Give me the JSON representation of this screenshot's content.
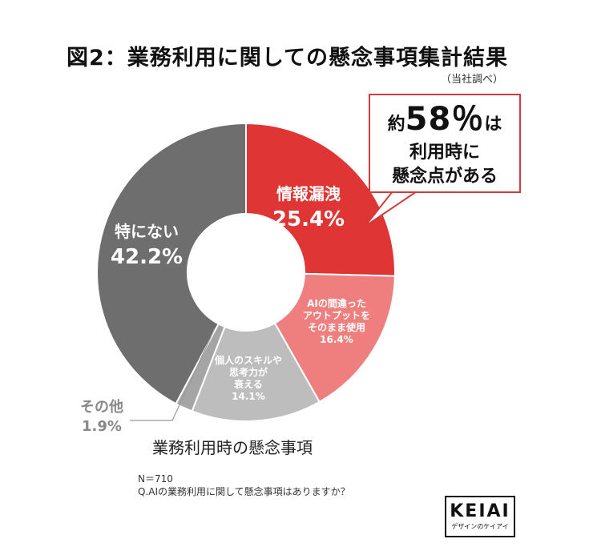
{
  "title": "図2：業務利用に関しての懸念事項集計結果",
  "source_note": "（当社調べ）",
  "callout": {
    "prefix": "約",
    "value": "58％",
    "suffix": "は",
    "line2": "利用時に",
    "line3": "懸念点がある"
  },
  "labels": {
    "leak_name": "情報漏洩",
    "leak_pct": "25.4%",
    "ai_line1": "AIの間違った",
    "ai_line2": "アウトプットを",
    "ai_line3": "そのまま使用",
    "ai_pct": "16.4%",
    "skill_line1": "個人のスキルや",
    "skill_line2": "思考力が",
    "skill_line3": "衰える",
    "skill_pct": "14.1%",
    "other_name": "その他",
    "other_pct": "1.9%",
    "none_name": "特にない",
    "none_pct": "42.2%"
  },
  "chart_data": {
    "type": "pie",
    "title": "業務利用時の懸念事項",
    "donut": true,
    "categories": [
      "情報漏洩",
      "AIの間違ったアウトプットをそのまま使用",
      "個人のスキルや思考力が衰える",
      "その他",
      "特にない"
    ],
    "values": [
      25.4,
      16.4,
      14.1,
      1.9,
      42.2
    ],
    "colors": [
      "#e03535",
      "#ef7f7f",
      "#bdbdbd",
      "#a5a5a5",
      "#6e6e6e"
    ]
  },
  "footnote": {
    "n": "N＝710",
    "question": "Q.AIの業務利用に関して懸念事項はありますか？"
  },
  "logo": {
    "word": "KEIAI",
    "sub": "デザインのケイアイ"
  }
}
